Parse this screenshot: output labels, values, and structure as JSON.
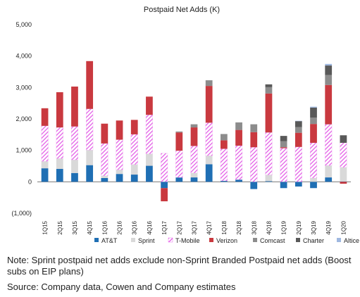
{
  "chart_data": {
    "type": "bar",
    "stacked": true,
    "title": "Postpaid Net Adds (K)",
    "xlabel": "",
    "ylabel": "",
    "ylim": [
      -1000,
      5000
    ],
    "yticks": [
      -1000,
      0,
      1000,
      2000,
      3000,
      4000,
      5000
    ],
    "ytick_labels": [
      "(1,000)",
      "0",
      "1,000",
      "2,000",
      "3,000",
      "4,000",
      "5,000"
    ],
    "grid": false,
    "legend_position": "bottom",
    "categories": [
      "1Q15",
      "2Q15",
      "3Q15",
      "4Q15",
      "1Q16",
      "2Q16",
      "3Q16",
      "4Q16",
      "1Q17",
      "2Q17",
      "3Q17",
      "4Q17",
      "1Q18",
      "2Q18",
      "3Q18",
      "4Q18",
      "1Q19",
      "2Q19",
      "3Q19",
      "4Q19",
      "1Q20"
    ],
    "series": [
      {
        "name": "AT&T",
        "color": "#1f6fb4",
        "pattern": "solid",
        "values": [
          430,
          410,
          280,
          530,
          120,
          250,
          230,
          510,
          -200,
          140,
          140,
          560,
          30,
          70,
          -230,
          20,
          -200,
          -150,
          -200,
          140,
          10
        ]
      },
      {
        "name": "Sprint",
        "color": "#d9d9d9",
        "pattern": "solid",
        "values": [
          220,
          330,
          420,
          480,
          70,
          130,
          320,
          380,
          0,
          0,
          140,
          270,
          0,
          0,
          0,
          200,
          0,
          0,
          120,
          380,
          450
        ]
      },
      {
        "name": "T-Mobile",
        "color": "#e255e6",
        "pattern": "hatch",
        "values": [
          1130,
          990,
          1060,
          1310,
          1030,
          960,
          960,
          1240,
          910,
          850,
          860,
          1050,
          1020,
          1080,
          1100,
          1350,
          1070,
          1110,
          1120,
          1310,
          780
        ]
      },
      {
        "name": "Verizon",
        "color": "#c9393f",
        "pattern": "solid",
        "values": [
          560,
          1120,
          1270,
          1520,
          630,
          610,
          460,
          580,
          -420,
          580,
          590,
          1170,
          270,
          500,
          480,
          1240,
          30,
          450,
          600,
          1250,
          -60
        ]
      },
      {
        "name": "Comcast",
        "color": "#8c8c8c",
        "pattern": "solid",
        "values": [
          0,
          0,
          0,
          0,
          0,
          0,
          0,
          0,
          0,
          30,
          100,
          180,
          200,
          240,
          250,
          200,
          190,
          180,
          200,
          320,
          0
        ]
      },
      {
        "name": "Charter",
        "color": "#595959",
        "pattern": "solid",
        "values": [
          0,
          0,
          0,
          0,
          0,
          0,
          0,
          0,
          0,
          0,
          0,
          0,
          0,
          0,
          0,
          90,
          170,
          190,
          320,
          300,
          240
        ]
      },
      {
        "name": "Altice",
        "color": "#9fb8e0",
        "pattern": "solid",
        "values": [
          0,
          0,
          0,
          0,
          0,
          0,
          0,
          0,
          0,
          0,
          0,
          0,
          0,
          0,
          0,
          0,
          0,
          10,
          30,
          50,
          0
        ]
      }
    ]
  },
  "notes": {
    "note": "Note: Sprint postpaid net adds exclude non-Sprint Branded Postpaid net adds (Boost subs on EIP plans)",
    "source": "Source: Company data, Cowen and Company estimates"
  }
}
